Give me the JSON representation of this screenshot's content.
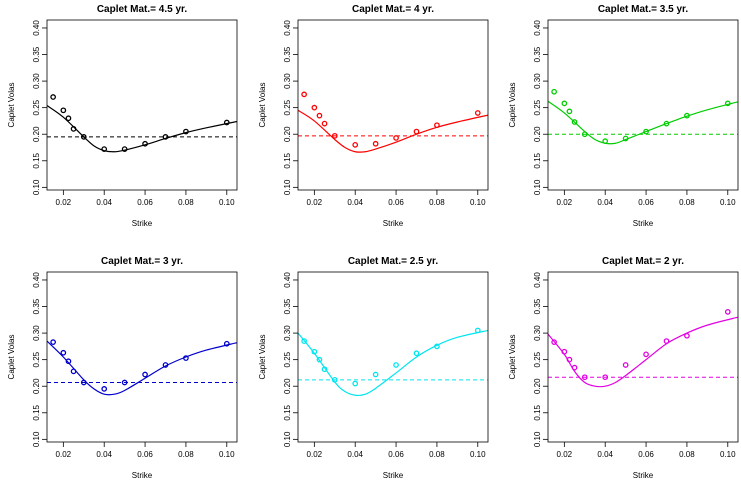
{
  "chart_data": [
    {
      "type": "line",
      "title": "Caplet Mat.= 4.5  yr.",
      "xlabel": "Strike",
      "ylabel": "Caplet Volas",
      "xlim": [
        0.012,
        0.105
      ],
      "ylim": [
        0.095,
        0.415
      ],
      "xticks": [
        "0.02",
        "0.04",
        "0.06",
        "0.08",
        "0.10"
      ],
      "yticks": [
        "0.10",
        "0.15",
        "0.20",
        "0.25",
        "0.30",
        "0.35",
        "0.40"
      ],
      "color": "#000000",
      "points": {
        "x": [
          0.015,
          0.02,
          0.0225,
          0.025,
          0.03,
          0.04,
          0.05,
          0.06,
          0.07,
          0.08,
          0.1
        ],
        "y": [
          0.27,
          0.245,
          0.23,
          0.21,
          0.195,
          0.172,
          0.172,
          0.182,
          0.195,
          0.205,
          0.222
        ]
      },
      "curve": {
        "x": [
          0.012,
          0.02,
          0.03,
          0.035,
          0.04,
          0.045,
          0.05,
          0.06,
          0.07,
          0.08,
          0.09,
          0.105
        ],
        "y": [
          0.254,
          0.232,
          0.195,
          0.178,
          0.169,
          0.167,
          0.17,
          0.18,
          0.192,
          0.203,
          0.212,
          0.224
        ]
      },
      "hline": 0.195
    },
    {
      "type": "line",
      "title": "Caplet Mat.= 4  yr.",
      "xlabel": "Strike",
      "ylabel": "Caplet Volas",
      "xlim": [
        0.012,
        0.105
      ],
      "ylim": [
        0.095,
        0.415
      ],
      "xticks": [
        "0.02",
        "0.04",
        "0.06",
        "0.08",
        "0.10"
      ],
      "yticks": [
        "0.10",
        "0.15",
        "0.20",
        "0.25",
        "0.30",
        "0.35",
        "0.40"
      ],
      "color": "#ff0000",
      "points": {
        "x": [
          0.015,
          0.02,
          0.0225,
          0.025,
          0.03,
          0.04,
          0.05,
          0.06,
          0.07,
          0.08,
          0.1
        ],
        "y": [
          0.275,
          0.25,
          0.235,
          0.22,
          0.197,
          0.18,
          0.182,
          0.193,
          0.205,
          0.217,
          0.24
        ]
      },
      "curve": {
        "x": [
          0.012,
          0.02,
          0.03,
          0.035,
          0.04,
          0.045,
          0.05,
          0.06,
          0.07,
          0.08,
          0.09,
          0.105
        ],
        "y": [
          0.245,
          0.225,
          0.19,
          0.175,
          0.167,
          0.167,
          0.172,
          0.185,
          0.2,
          0.213,
          0.223,
          0.236
        ]
      },
      "hline": 0.197
    },
    {
      "type": "line",
      "title": "Caplet Mat.= 3.5  yr.",
      "xlabel": "Strike",
      "ylabel": "Caplet Volas",
      "xlim": [
        0.012,
        0.105
      ],
      "ylim": [
        0.095,
        0.415
      ],
      "xticks": [
        "0.02",
        "0.04",
        "0.06",
        "0.08",
        "0.10"
      ],
      "yticks": [
        "0.10",
        "0.15",
        "0.20",
        "0.25",
        "0.30",
        "0.35",
        "0.40"
      ],
      "color": "#00cd00",
      "points": {
        "x": [
          0.015,
          0.02,
          0.0225,
          0.025,
          0.03,
          0.04,
          0.05,
          0.06,
          0.07,
          0.08,
          0.1
        ],
        "y": [
          0.28,
          0.258,
          0.243,
          0.223,
          0.2,
          0.187,
          0.192,
          0.205,
          0.22,
          0.235,
          0.258
        ]
      },
      "curve": {
        "x": [
          0.012,
          0.02,
          0.03,
          0.035,
          0.04,
          0.045,
          0.05,
          0.06,
          0.07,
          0.08,
          0.09,
          0.105
        ],
        "y": [
          0.262,
          0.24,
          0.205,
          0.19,
          0.183,
          0.183,
          0.19,
          0.205,
          0.22,
          0.234,
          0.246,
          0.261
        ]
      },
      "hline": 0.2
    },
    {
      "type": "line",
      "title": "Caplet Mat.= 3  yr.",
      "xlabel": "Strike",
      "ylabel": "Caplet Volas",
      "xlim": [
        0.012,
        0.105
      ],
      "ylim": [
        0.095,
        0.415
      ],
      "xticks": [
        "0.02",
        "0.04",
        "0.06",
        "0.08",
        "0.10"
      ],
      "yticks": [
        "0.10",
        "0.15",
        "0.20",
        "0.25",
        "0.30",
        "0.35",
        "0.40"
      ],
      "color": "#0000cd",
      "points": {
        "x": [
          0.015,
          0.02,
          0.0225,
          0.025,
          0.03,
          0.04,
          0.05,
          0.06,
          0.07,
          0.08,
          0.1
        ],
        "y": [
          0.283,
          0.263,
          0.247,
          0.228,
          0.207,
          0.195,
          0.207,
          0.222,
          0.24,
          0.253,
          0.28
        ]
      },
      "curve": {
        "x": [
          0.012,
          0.02,
          0.03,
          0.035,
          0.04,
          0.045,
          0.05,
          0.06,
          0.07,
          0.08,
          0.09,
          0.105
        ],
        "y": [
          0.285,
          0.255,
          0.212,
          0.195,
          0.185,
          0.185,
          0.192,
          0.215,
          0.238,
          0.255,
          0.268,
          0.282
        ]
      },
      "hline": 0.207
    },
    {
      "type": "line",
      "title": "Caplet Mat.= 2.5  yr.",
      "xlabel": "Strike",
      "ylabel": "Caplet Volas",
      "xlim": [
        0.012,
        0.105
      ],
      "ylim": [
        0.095,
        0.415
      ],
      "xticks": [
        "0.02",
        "0.04",
        "0.06",
        "0.08",
        "0.10"
      ],
      "yticks": [
        "0.10",
        "0.15",
        "0.20",
        "0.25",
        "0.30",
        "0.35",
        "0.40"
      ],
      "color": "#00e5ee",
      "points": {
        "x": [
          0.015,
          0.02,
          0.0225,
          0.025,
          0.03,
          0.04,
          0.05,
          0.06,
          0.07,
          0.08,
          0.1
        ],
        "y": [
          0.285,
          0.265,
          0.25,
          0.232,
          0.212,
          0.205,
          0.222,
          0.24,
          0.262,
          0.275,
          0.305
        ]
      },
      "curve": {
        "x": [
          0.012,
          0.02,
          0.03,
          0.035,
          0.04,
          0.045,
          0.05,
          0.06,
          0.07,
          0.08,
          0.09,
          0.105
        ],
        "y": [
          0.3,
          0.262,
          0.208,
          0.19,
          0.183,
          0.185,
          0.196,
          0.225,
          0.255,
          0.277,
          0.292,
          0.305
        ]
      },
      "hline": 0.212
    },
    {
      "type": "line",
      "title": "Caplet Mat.= 2  yr.",
      "xlabel": "Strike",
      "ylabel": "Caplet Volas",
      "xlim": [
        0.012,
        0.105
      ],
      "ylim": [
        0.095,
        0.415
      ],
      "xticks": [
        "0.02",
        "0.04",
        "0.06",
        "0.08",
        "0.10"
      ],
      "yticks": [
        "0.10",
        "0.15",
        "0.20",
        "0.25",
        "0.30",
        "0.35",
        "0.40"
      ],
      "color": "#e300e3",
      "points": {
        "x": [
          0.015,
          0.02,
          0.0225,
          0.025,
          0.03,
          0.04,
          0.05,
          0.06,
          0.07,
          0.08,
          0.1
        ],
        "y": [
          0.283,
          0.265,
          0.25,
          0.235,
          0.217,
          0.217,
          0.24,
          0.26,
          0.285,
          0.295,
          0.34
        ]
      },
      "curve": {
        "x": [
          0.012,
          0.02,
          0.025,
          0.03,
          0.035,
          0.04,
          0.045,
          0.05,
          0.06,
          0.07,
          0.08,
          0.09,
          0.105
        ],
        "y": [
          0.298,
          0.26,
          0.228,
          0.207,
          0.2,
          0.2,
          0.207,
          0.22,
          0.25,
          0.28,
          0.3,
          0.315,
          0.33
        ]
      },
      "hline": 0.217
    }
  ]
}
